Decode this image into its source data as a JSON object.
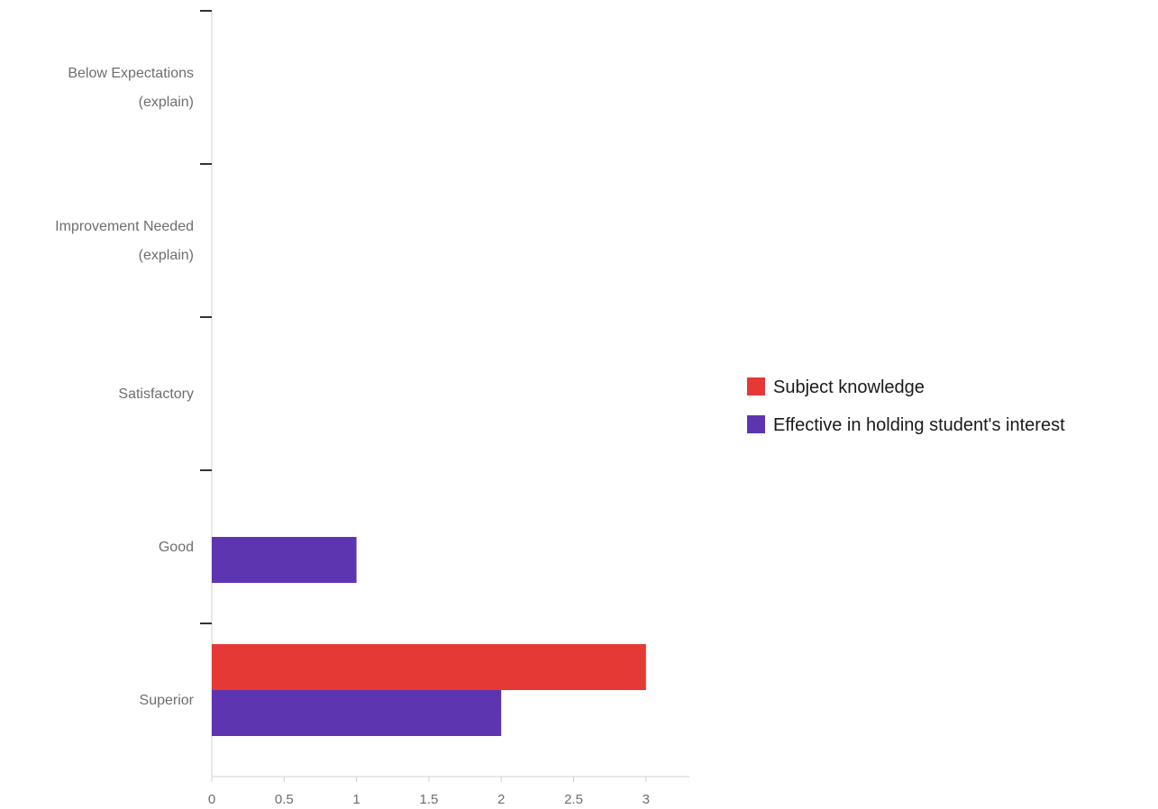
{
  "chart_data": {
    "type": "bar",
    "orientation": "horizontal",
    "categories": [
      [
        "Below Expectations",
        "(explain)"
      ],
      [
        "Improvement Needed",
        "(explain)"
      ],
      [
        "Satisfactory"
      ],
      [
        "Good"
      ],
      [
        "Superior"
      ]
    ],
    "series": [
      {
        "name": "Subject knowledge",
        "color": "#e53935",
        "values": [
          0,
          0,
          0,
          0,
          3
        ]
      },
      {
        "name": "Effective in holding student's interest",
        "color": "#5e35b1",
        "values": [
          0,
          0,
          0,
          1,
          2
        ]
      }
    ],
    "xlim": [
      0,
      3.3
    ],
    "x_ticks": [
      0,
      0.5,
      1,
      1.5,
      2,
      2.5,
      3
    ],
    "x_tick_labels": [
      "0",
      "0.5",
      "1",
      "1.5",
      "2",
      "2.5",
      "3"
    ],
    "title": "",
    "xlabel": "",
    "ylabel": "",
    "grid": false,
    "legend_position": "right"
  }
}
